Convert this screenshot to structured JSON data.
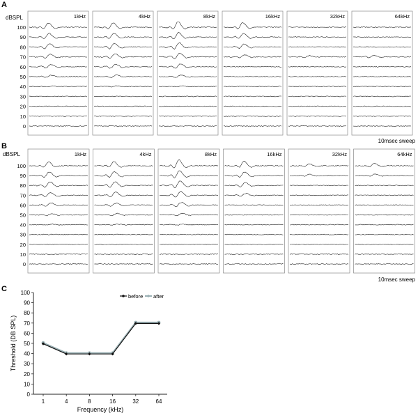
{
  "panels": [
    {
      "label": "A",
      "ylabel": "dBSPL",
      "levels": [
        "100",
        "90",
        "80",
        "70",
        "60",
        "50",
        "40",
        "30",
        "20",
        "10",
        "0"
      ],
      "sweep_label": "10msec sweep",
      "frequencies": [
        "1kHz",
        "4kHz",
        "8kHz",
        "16kHz",
        "32kHz",
        "64kHz"
      ]
    },
    {
      "label": "B",
      "ylabel": "dBSPL",
      "levels": [
        "100",
        "90",
        "80",
        "70",
        "60",
        "50",
        "40",
        "30",
        "20",
        "10",
        "0"
      ],
      "sweep_label": "10msec sweep",
      "frequencies": [
        "1kHz",
        "4kHz",
        "8kHz",
        "16kHz",
        "32kHz",
        "64kHz"
      ]
    }
  ],
  "chart_data": [
    {
      "type": "line",
      "panel": "A",
      "title": "",
      "description_units": "ABR waveform traces per stimulus level",
      "levels_dbspl": [
        100,
        90,
        80,
        70,
        60,
        50,
        40,
        30,
        20,
        10,
        0
      ],
      "frequencies_khz": [
        1,
        4,
        8,
        16,
        32,
        64
      ],
      "response_amplitude": [
        [
          1.0,
          0.9,
          0.8,
          0.65,
          0.5,
          0.35,
          0.15,
          0.05,
          0.0,
          0.0,
          0.0
        ],
        [
          1.0,
          0.9,
          0.85,
          0.7,
          0.55,
          0.4,
          0.15,
          0.05,
          0.0,
          0.0,
          0.0
        ],
        [
          1.3,
          1.1,
          0.95,
          0.85,
          0.65,
          0.4,
          0.15,
          0.05,
          0.0,
          0.0,
          0.0
        ],
        [
          1.1,
          0.85,
          0.65,
          0.45,
          0.0,
          0.0,
          0.0,
          0.0,
          0.0,
          0.0,
          0.0
        ],
        [
          0.0,
          0.0,
          0.0,
          0.25,
          0.0,
          0.0,
          0.0,
          0.0,
          0.0,
          0.0,
          0.0
        ],
        [
          0.0,
          0.0,
          0.0,
          0.35,
          0.0,
          0.0,
          0.0,
          0.0,
          0.0,
          0.0,
          0.0
        ]
      ],
      "xlabel": "10msec sweep",
      "ylabel": "dBSPL"
    },
    {
      "type": "line",
      "panel": "B",
      "title": "",
      "description_units": "ABR waveform traces per stimulus level",
      "levels_dbspl": [
        100,
        90,
        80,
        70,
        60,
        50,
        40,
        30,
        20,
        10,
        0
      ],
      "frequencies_khz": [
        1,
        4,
        8,
        16,
        32,
        64
      ],
      "response_amplitude": [
        [
          0.9,
          0.85,
          0.8,
          0.65,
          0.5,
          0.3,
          0.15,
          0.05,
          0.0,
          0.0,
          0.0
        ],
        [
          1.0,
          0.9,
          0.85,
          0.7,
          0.5,
          0.35,
          0.15,
          0.05,
          0.0,
          0.0,
          0.0
        ],
        [
          1.4,
          1.15,
          1.0,
          0.85,
          0.65,
          0.4,
          0.15,
          0.05,
          0.0,
          0.0,
          0.0
        ],
        [
          1.1,
          0.85,
          0.65,
          0.45,
          0.0,
          0.0,
          0.0,
          0.0,
          0.0,
          0.0,
          0.0
        ],
        [
          0.45,
          0.3,
          0.0,
          0.0,
          0.0,
          0.0,
          0.0,
          0.0,
          0.0,
          0.0,
          0.0
        ],
        [
          0.55,
          0.35,
          0.0,
          0.0,
          0.0,
          0.0,
          0.0,
          0.0,
          0.0,
          0.0,
          0.0
        ]
      ],
      "xlabel": "10msec sweep",
      "ylabel": "dBSPL"
    },
    {
      "type": "line",
      "panel": "C",
      "title": "",
      "categories": [
        "1",
        "4",
        "8",
        "16",
        "32",
        "64"
      ],
      "series": [
        {
          "name": "before",
          "color": "#111111",
          "values": [
            50,
            40,
            40,
            40,
            70,
            70
          ]
        },
        {
          "name": "after",
          "color": "#9ab0b4",
          "values": [
            50,
            40,
            40,
            40,
            70,
            70
          ]
        }
      ],
      "xlabel": "Frequency (kHz)",
      "ylabel": "Threshold (DB SPL)",
      "ylim": [
        0,
        100
      ],
      "yticks": [
        "0",
        "10",
        "20",
        "30",
        "40",
        "50",
        "60",
        "70",
        "80",
        "90",
        "100"
      ],
      "grid": false,
      "legend": "top-center"
    }
  ],
  "panel_c": {
    "label": "C"
  }
}
